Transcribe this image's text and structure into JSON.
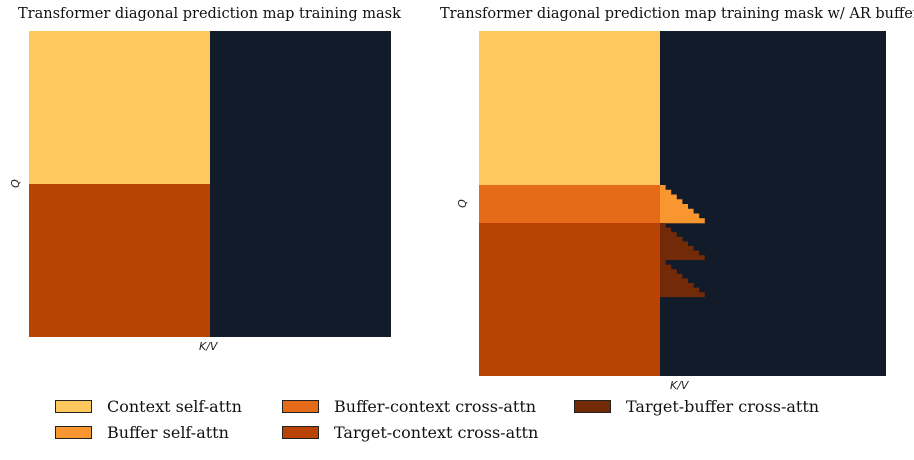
{
  "panels": [
    {
      "title": "Transformer diagonal prediction map training mask",
      "ylabel": "Q",
      "xlabel": "K/V"
    },
    {
      "title": "Transformer diagonal prediction map training mask w/ AR buffer",
      "ylabel": "Q",
      "xlabel": "K/V"
    }
  ],
  "legend": [
    {
      "label": "Context self-attn",
      "color": "#fdc95e"
    },
    {
      "label": "Buffer self-attn",
      "color": "#f9962f"
    },
    {
      "label": "Buffer-context cross-attn",
      "color": "#e66b19"
    },
    {
      "label": "Target-context cross-attn",
      "color": "#b94303"
    },
    {
      "label": "Target-buffer cross-attn",
      "color": "#732a08"
    }
  ],
  "colors": {
    "masked": "#111b29",
    "context_self": "#fdc95e",
    "buffer_self": "#f9962f",
    "buffer_context": "#e66b19",
    "target_context": "#b94303",
    "target_buffer": "#732a08"
  }
}
